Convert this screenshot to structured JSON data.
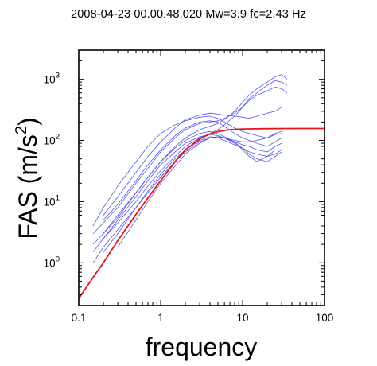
{
  "chart_data": {
    "type": "line",
    "title": "2008-04-23 00.00.48.020 Mw=3.9 fc=2.43 Hz",
    "xlabel": "frequency",
    "ylabel_base": "FAS (m/s",
    "ylabel_sup": "2",
    "ylabel_end": ")",
    "xscale": "log",
    "yscale": "log",
    "xlim": [
      0.1,
      100
    ],
    "ylim": [
      0.2,
      3000
    ],
    "x_ticks": [
      {
        "value": 0.1,
        "label": "0.1"
      },
      {
        "value": 1,
        "label": "1"
      },
      {
        "value": 10,
        "label": "10"
      },
      {
        "value": 100,
        "label": "100"
      }
    ],
    "y_ticks": [
      {
        "value": 1,
        "base": "10",
        "exp": "0"
      },
      {
        "value": 10,
        "base": "10",
        "exp": "1"
      },
      {
        "value": 100,
        "base": "10",
        "exp": "2"
      },
      {
        "value": 1000,
        "base": "10",
        "exp": "3"
      }
    ],
    "grid": false,
    "legend": "none",
    "observed_color": "#3a3aee",
    "model_color": "#e8141b",
    "model": {
      "x": [
        0.1,
        0.15,
        0.2,
        0.3,
        0.5,
        0.7,
        1,
        1.5,
        2,
        3,
        4,
        5,
        7,
        10,
        20,
        50,
        100
      ],
      "y": [
        0.26,
        0.58,
        1.0,
        2.3,
        6.2,
        11.5,
        22,
        45,
        70,
        106,
        128,
        140,
        150,
        154,
        156,
        157,
        157
      ]
    },
    "series": [
      {
        "x": [
          0.15,
          0.2,
          0.3,
          0.5,
          0.7,
          1,
          1.5,
          2,
          3,
          4,
          5,
          6,
          8,
          10,
          12,
          15,
          20,
          25,
          30,
          35
        ],
        "y": [
          2.0,
          3.0,
          5.5,
          14,
          25,
          45,
          80,
          110,
          150,
          170,
          190,
          220,
          300,
          420,
          550,
          700,
          900,
          1100,
          1200,
          1000
        ]
      },
      {
        "x": [
          0.15,
          0.2,
          0.3,
          0.5,
          0.7,
          1,
          1.5,
          2,
          3,
          4,
          5,
          6,
          8,
          10,
          12,
          15,
          20,
          25,
          30,
          35
        ],
        "y": [
          3.0,
          4.5,
          8,
          20,
          35,
          65,
          110,
          150,
          190,
          200,
          210,
          230,
          280,
          350,
          450,
          550,
          650,
          750,
          700,
          600
        ]
      },
      {
        "x": [
          0.15,
          0.2,
          0.3,
          0.5,
          0.7,
          1,
          1.5,
          2,
          3,
          4,
          5,
          6,
          8,
          10,
          12,
          15,
          20,
          25,
          30,
          35
        ],
        "y": [
          1.5,
          2.5,
          4.5,
          10,
          18,
          32,
          55,
          80,
          110,
          130,
          150,
          180,
          250,
          350,
          480,
          600,
          800,
          950,
          900,
          800
        ]
      },
      {
        "x": [
          0.2,
          0.3,
          0.5,
          0.7,
          1,
          1.5,
          2,
          3,
          4,
          5,
          6,
          8,
          10,
          12,
          15,
          20,
          25,
          30
        ],
        "y": [
          5,
          9,
          22,
          40,
          70,
          120,
          160,
          200,
          210,
          200,
          170,
          130,
          110,
          100,
          90,
          80,
          95,
          110
        ]
      },
      {
        "x": [
          0.2,
          0.3,
          0.5,
          0.7,
          1,
          1.5,
          2,
          3,
          4,
          5,
          6,
          8,
          10,
          12,
          15,
          20,
          25,
          30
        ],
        "y": [
          3,
          6,
          14,
          25,
          45,
          75,
          100,
          130,
          140,
          130,
          115,
          95,
          85,
          80,
          70,
          65,
          80,
          90
        ]
      },
      {
        "x": [
          0.2,
          0.3,
          0.5,
          0.7,
          1,
          1.5,
          2,
          3,
          4,
          5,
          6,
          8,
          10,
          12,
          15,
          20,
          25,
          30
        ],
        "y": [
          2.5,
          5,
          12,
          22,
          40,
          65,
          90,
          115,
          125,
          120,
          110,
          90,
          75,
          65,
          60,
          55,
          60,
          70
        ]
      },
      {
        "x": [
          0.2,
          0.3,
          0.5,
          0.7,
          1,
          1.5,
          2,
          3,
          4,
          5,
          6,
          8,
          10,
          12,
          15,
          20,
          25,
          30
        ],
        "y": [
          1.5,
          3,
          8,
          15,
          28,
          50,
          70,
          100,
          115,
          110,
          100,
          85,
          75,
          60,
          50,
          45,
          55,
          65
        ]
      },
      {
        "x": [
          0.15,
          0.2,
          0.3,
          0.5,
          0.7,
          1,
          1.5,
          2,
          3,
          4,
          5,
          6,
          8,
          10,
          12,
          15,
          20,
          25,
          30
        ],
        "y": [
          4,
          8,
          18,
          45,
          80,
          130,
          180,
          210,
          240,
          250,
          230,
          200,
          160,
          140,
          130,
          120,
          110,
          130,
          140
        ]
      },
      {
        "x": [
          0.2,
          0.3,
          0.5,
          0.7,
          1,
          1.5,
          2,
          3,
          4,
          5,
          6,
          8,
          10,
          12,
          15,
          20,
          25,
          30
        ],
        "y": [
          6,
          12,
          30,
          55,
          95,
          160,
          220,
          260,
          280,
          270,
          260,
          250,
          240,
          230,
          250,
          280,
          300,
          350
        ]
      },
      {
        "x": [
          0.15,
          0.2,
          0.3,
          0.5,
          0.7,
          1,
          1.5,
          2,
          3,
          4,
          5,
          6,
          8,
          10,
          12,
          15,
          20,
          25,
          30
        ],
        "y": [
          1.0,
          1.8,
          3.5,
          8,
          14,
          25,
          45,
          65,
          95,
          110,
          115,
          110,
          100,
          95,
          95,
          100,
          110,
          125,
          130
        ]
      },
      {
        "x": [
          0.3,
          0.5,
          0.7,
          1,
          1.5,
          2,
          3,
          4,
          5,
          6,
          8,
          10,
          12,
          15,
          20,
          25
        ],
        "y": [
          1.8,
          5,
          10,
          20,
          38,
          60,
          90,
          110,
          115,
          110,
          95,
          70,
          55,
          45,
          55,
          70
        ]
      }
    ]
  }
}
